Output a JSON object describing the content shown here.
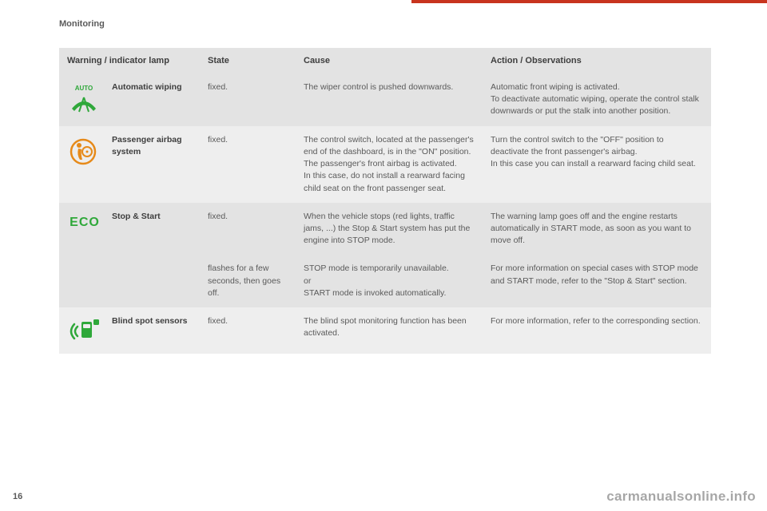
{
  "page": {
    "section": "Monitoring",
    "number": "16",
    "watermark": "carmanualsonline.info"
  },
  "colors": {
    "accent": "#c8341e",
    "text_muted": "#5a5a5a",
    "text_strong": "#3e3e3e",
    "row_dark": "#e3e3e3",
    "row_light": "#eeeeee",
    "icon_green": "#2fa83a",
    "icon_orange": "#e68a1a"
  },
  "table": {
    "headers": {
      "lamp": "Warning / indicator lamp",
      "state": "State",
      "cause": "Cause",
      "action": "Action / Observations"
    },
    "rows": [
      {
        "icon": "auto-wipe",
        "name": "Automatic wiping",
        "state": "fixed.",
        "cause": "The wiper control is pushed downwards.",
        "action": "Automatic front wiping is activated.\nTo deactivate automatic wiping, operate the control stalk downwards or put the stalk into another position."
      },
      {
        "icon": "airbag",
        "name": "Passenger airbag system",
        "state": "fixed.",
        "cause": "The control switch, located at the passenger's end of the dashboard, is in the \"ON\" position.\nThe passenger's front airbag is activated.\nIn this case, do not install a rearward facing child seat on the front passenger seat.",
        "action": "Turn the control switch to the \"OFF\" position to deactivate the front passenger's airbag.\nIn this case you can install a rearward facing child seat."
      },
      {
        "icon": "eco",
        "name": "Stop & Start",
        "state": "fixed.",
        "cause": "When the vehicle stops (red lights, traffic jams, ...) the Stop & Start system has put the engine into STOP mode.",
        "action": "The warning lamp goes off and the engine restarts automatically in START mode, as soon as you want to move off."
      },
      {
        "icon": "",
        "name": "",
        "state": "flashes for a few seconds, then goes off.",
        "cause": "STOP mode is temporarily unavailable.\nor\nSTART mode is invoked automatically.",
        "action": "For more information on special cases with STOP mode and START mode, refer to the \"Stop & Start\" section."
      },
      {
        "icon": "blind-spot",
        "name": "Blind spot sensors",
        "state": "fixed.",
        "cause": "The blind spot monitoring function has been activated.",
        "action": "For more information, refer to the corresponding section."
      }
    ]
  }
}
